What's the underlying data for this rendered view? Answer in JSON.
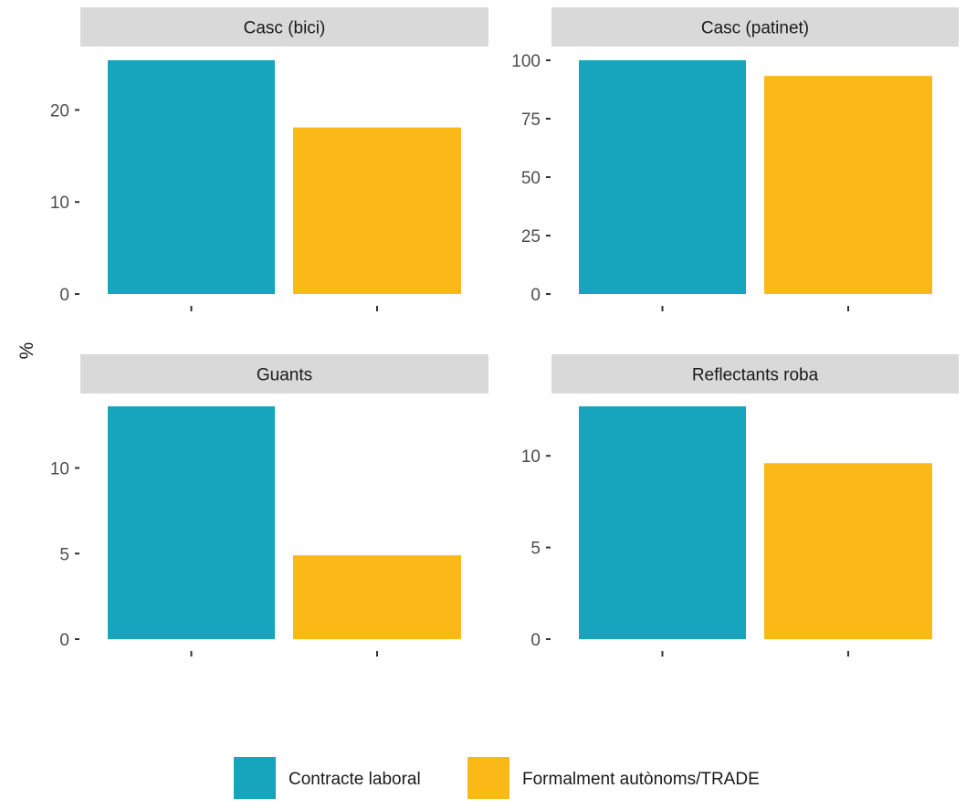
{
  "chart_data": {
    "type": "bar",
    "ylabel": "%",
    "xlabel": "",
    "legend": {
      "position": "bottom",
      "entries": [
        {
          "name": "Contracte laboral",
          "color": "#17a5bd"
        },
        {
          "name": "Formalment autònoms/TRADE",
          "color": "#fbb917"
        }
      ]
    },
    "panels": [
      {
        "title": "Casc (bici)",
        "ylim": [
          0,
          25.4
        ],
        "yticks": [
          0,
          10,
          20
        ],
        "series": [
          {
            "name": "Contracte laboral",
            "value": 25.4
          },
          {
            "name": "Formalment autònoms/TRADE",
            "value": 18.1
          }
        ]
      },
      {
        "title": "Casc (patinet)",
        "ylim": [
          0,
          100
        ],
        "yticks": [
          0,
          25,
          50,
          75,
          100
        ],
        "series": [
          {
            "name": "Contracte laboral",
            "value": 100
          },
          {
            "name": "Formalment autònoms/TRADE",
            "value": 93.3
          }
        ]
      },
      {
        "title": "Guants",
        "ylim": [
          0,
          13.6
        ],
        "yticks": [
          0,
          5,
          10
        ],
        "series": [
          {
            "name": "Contracte laboral",
            "value": 13.6
          },
          {
            "name": "Formalment autònoms/TRADE",
            "value": 4.9
          }
        ]
      },
      {
        "title": "Reflectants roba",
        "ylim": [
          0,
          12.7
        ],
        "yticks": [
          0,
          5,
          10
        ],
        "series": [
          {
            "name": "Contracte laboral",
            "value": 12.7
          },
          {
            "name": "Formalment autònoms/TRADE",
            "value": 9.6
          }
        ]
      }
    ]
  }
}
